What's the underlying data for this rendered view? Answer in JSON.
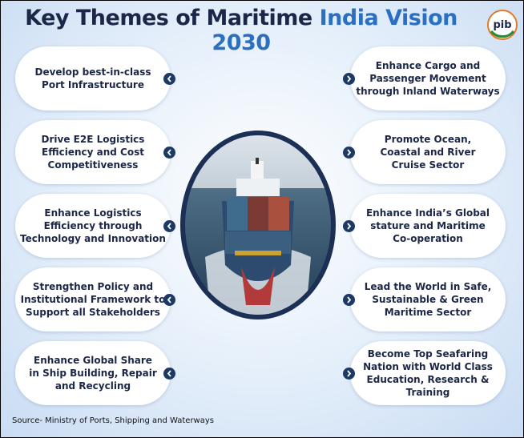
{
  "header": {
    "title_part1": "Key Themes of Maritime",
    "title_part2": "India Vision 2030",
    "logo": "pib"
  },
  "themes": {
    "left": [
      {
        "lines": [
          "Develop best-in-class",
          "Port Infrastructure"
        ]
      },
      {
        "lines": [
          "Drive E2E Logistics",
          "Efficiency and Cost",
          "Competitiveness"
        ]
      },
      {
        "lines": [
          "Enhance Logistics",
          "Efficiency through",
          "Technology and Innovation"
        ]
      },
      {
        "lines": [
          "Strengthen Policy and",
          "Institutional Framework to",
          "Support all Stakeholders"
        ]
      },
      {
        "lines": [
          "Enhance Global Share",
          "in Ship Building, Repair",
          "and Recycling"
        ]
      }
    ],
    "right": [
      {
        "lines": [
          "Enhance Cargo and",
          "Passenger Movement",
          "through Inland Waterways"
        ]
      },
      {
        "lines": [
          "Promote Ocean,",
          "Coastal and River",
          "Cruise Sector"
        ]
      },
      {
        "lines": [
          "Enhance India’s Global",
          "stature and Maritime",
          "Co-operation"
        ]
      },
      {
        "lines": [
          "Lead the World in Safe,",
          "Sustainable & Green",
          "Maritime Sector"
        ]
      },
      {
        "lines": [
          "Become Top Seafaring",
          "Nation with World Class",
          "Education, Research & Training"
        ]
      }
    ]
  },
  "footer": {
    "source": "Source- Ministry of Ports, Shipping and Waterways"
  }
}
